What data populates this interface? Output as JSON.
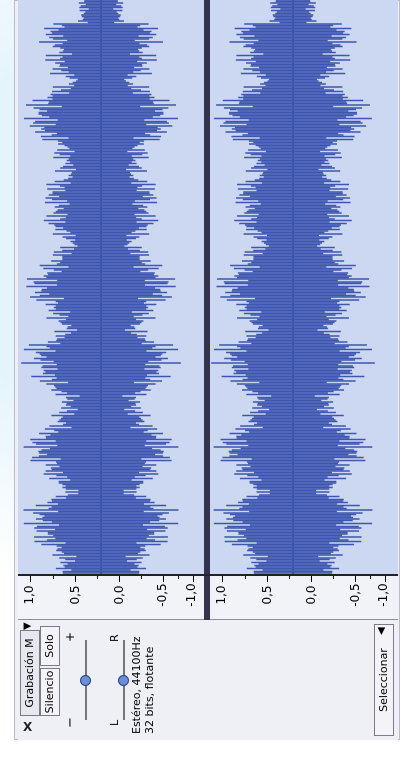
{
  "track": {
    "name": "Grabación M",
    "close_label": "X",
    "menu_arrow": "chevron-down-icon",
    "mute_label": "Silencio",
    "solo_label": "Solo",
    "gain_minus": "−",
    "gain_plus": "+",
    "pan_left": "L",
    "pan_right": "R",
    "info_line1": "Estéreo, 44100Hz",
    "info_line2": "32 bits, flotante",
    "select_label": "Seleccionar",
    "gain_level": 0.5,
    "pan_level": 0.5
  },
  "ruler": {
    "left_channel_ticks": [
      "1,0",
      "0,5",
      "0,0",
      "-0,5",
      "-1,0"
    ],
    "right_channel_ticks": [
      "1,0",
      "0,5",
      "0,0",
      "-0,5",
      "-1,0"
    ]
  },
  "colors": {
    "wave": "#3f56b0",
    "wave_bg": "#ccd8f2",
    "divider": "#33334d"
  }
}
